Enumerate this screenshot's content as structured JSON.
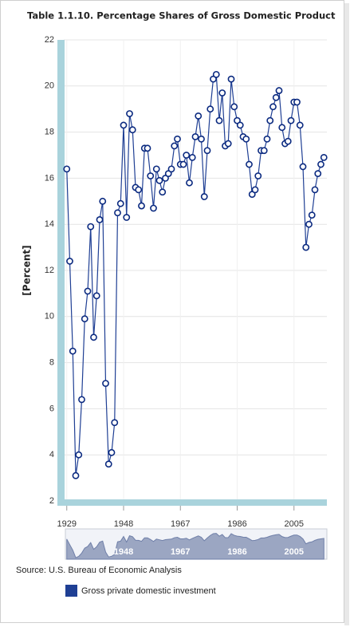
{
  "chart_data": {
    "type": "line",
    "title": "Table 1.1.10. Percentage Shares of Gross Domestic Product",
    "y_label": "[Percent]",
    "source": "Source: U.S. Bureau of Economic Analysis",
    "x": [
      1929,
      1930,
      1931,
      1932,
      1933,
      1934,
      1935,
      1936,
      1937,
      1938,
      1939,
      1940,
      1941,
      1942,
      1943,
      1944,
      1945,
      1946,
      1947,
      1948,
      1949,
      1950,
      1951,
      1952,
      1953,
      1954,
      1955,
      1956,
      1957,
      1958,
      1959,
      1960,
      1961,
      1962,
      1963,
      1964,
      1965,
      1966,
      1967,
      1968,
      1969,
      1970,
      1971,
      1972,
      1973,
      1974,
      1975,
      1976,
      1977,
      1978,
      1979,
      1980,
      1981,
      1982,
      1983,
      1984,
      1985,
      1986,
      1987,
      1988,
      1989,
      1990,
      1991,
      1992,
      1993,
      1994,
      1995,
      1996,
      1997,
      1998,
      1999,
      2000,
      2001,
      2002,
      2003,
      2004,
      2005,
      2006,
      2007,
      2008,
      2009,
      2010,
      2011,
      2012,
      2013,
      2014,
      2015
    ],
    "series": [
      {
        "name": "Gross private domestic investment",
        "color": "#1f3f94",
        "values": [
          16.4,
          12.4,
          8.5,
          3.1,
          4.0,
          6.4,
          9.9,
          11.1,
          13.9,
          9.1,
          10.9,
          14.2,
          15.0,
          7.1,
          3.6,
          4.1,
          5.4,
          14.5,
          14.9,
          18.3,
          14.3,
          18.8,
          18.1,
          15.6,
          15.5,
          14.8,
          17.3,
          17.3,
          16.1,
          14.7,
          16.4,
          15.9,
          15.4,
          16.0,
          16.2,
          16.4,
          17.4,
          17.7,
          16.6,
          16.6,
          17.0,
          15.8,
          16.9,
          17.8,
          18.7,
          17.7,
          15.2,
          17.2,
          19.0,
          20.3,
          20.5,
          18.5,
          19.7,
          17.4,
          17.5,
          20.3,
          19.1,
          18.5,
          18.3,
          17.8,
          17.7,
          16.6,
          15.3,
          15.5,
          16.1,
          17.2,
          17.2,
          17.7,
          18.5,
          19.1,
          19.5,
          19.8,
          18.2,
          17.5,
          17.6,
          18.5,
          19.3,
          19.3,
          18.3,
          16.5,
          13.0,
          14.0,
          14.4,
          15.5,
          16.2,
          16.6,
          16.9
        ]
      }
    ],
    "xlim": [
      1928,
      2016
    ],
    "xticks": [
      1929,
      1948,
      1967,
      1986,
      2005
    ],
    "ylim": [
      2,
      22
    ],
    "yticks": [
      2,
      4,
      6,
      8,
      10,
      12,
      14,
      16,
      18,
      20,
      22
    ],
    "grid": true
  }
}
